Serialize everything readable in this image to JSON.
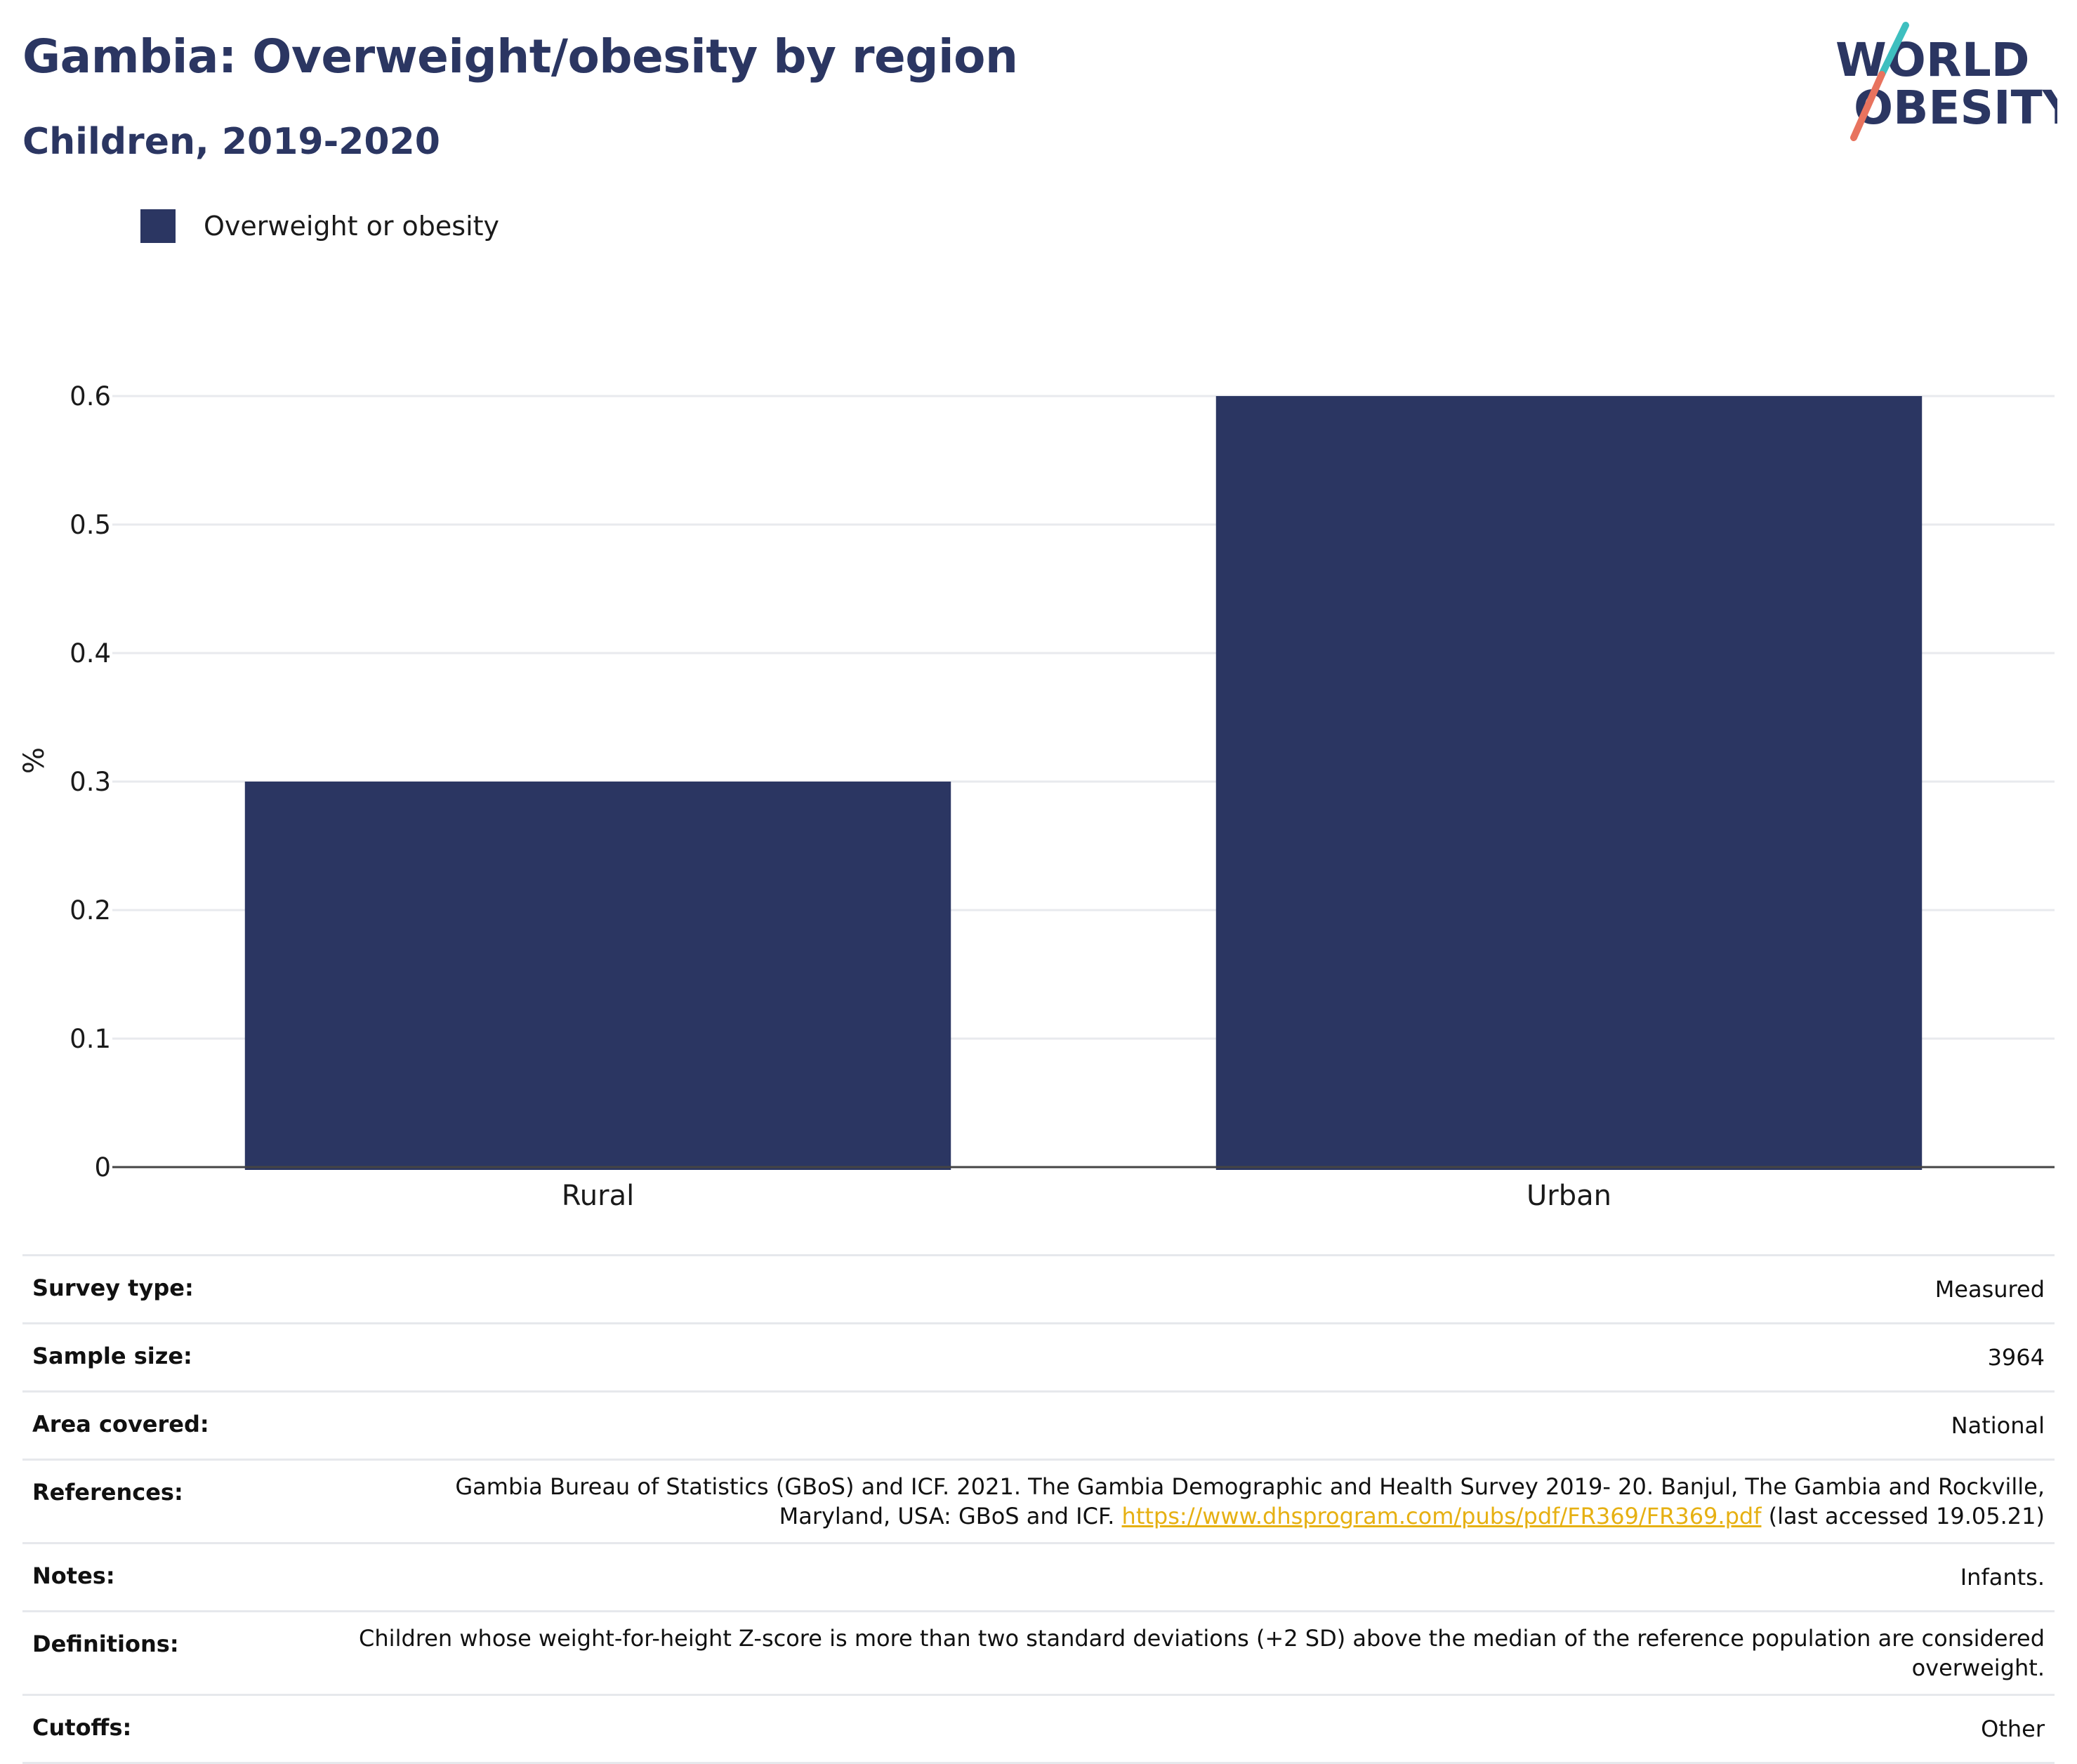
{
  "header": {
    "title": "Gambia: Overweight/obesity by region",
    "subtitle": "Children, 2019-2020"
  },
  "logo": {
    "line1": "WORLD",
    "line2": "OBESITY",
    "colors": {
      "text": "#2b3662",
      "slash_teal": "#3ebfbf",
      "slash_coral": "#e8735e"
    }
  },
  "legend": {
    "label": "Overweight or obesity",
    "color": "#2b3662"
  },
  "chart_data": {
    "type": "bar",
    "categories": [
      "Rural",
      "Urban"
    ],
    "series": [
      {
        "name": "Overweight or obesity",
        "values": [
          0.3,
          0.6
        ],
        "color": "#2b3662"
      }
    ],
    "title": "Gambia: Overweight/obesity by region",
    "subtitle": "Children, 2019-2020",
    "xlabel": "",
    "ylabel": "%",
    "ylim": [
      0,
      0.6
    ],
    "yticks": [
      "0",
      "0.1",
      "0.2",
      "0.3",
      "0.4",
      "0.5",
      "0.6"
    ],
    "grid": true,
    "legend_position": "top-left"
  },
  "info": {
    "survey_type": {
      "label": "Survey type:",
      "value": "Measured"
    },
    "sample_size": {
      "label": "Sample size:",
      "value": "3964"
    },
    "area_covered": {
      "label": "Area covered:",
      "value": "National"
    },
    "references": {
      "label": "References:",
      "text_before": "Gambia Bureau of Statistics (GBoS) and ICF. 2021. The Gambia Demographic and Health Survey 2019- 20. Banjul, The Gambia and Rockville, Maryland, USA: GBoS and ICF.",
      "link": "https://www.dhsprogram.com/pubs/pdf/FR369/FR369.pdf",
      "text_after": "(last accessed 19.05.21)"
    },
    "notes": {
      "label": "Notes:",
      "value": "Infants."
    },
    "definitions": {
      "label": "Definitions:",
      "value": "Children whose weight-for-height Z-score is more than two standard deviations (+2 SD) above the median of the reference population are considered overweight."
    },
    "cutoffs": {
      "label": "Cutoffs:",
      "value": "Other"
    }
  }
}
